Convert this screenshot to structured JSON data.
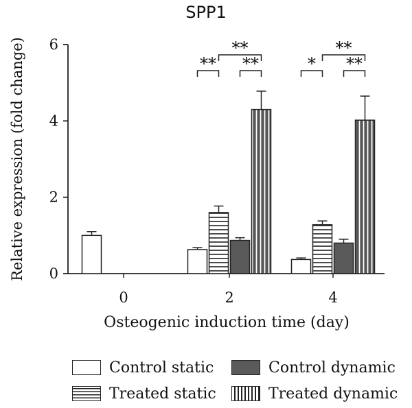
{
  "chart_data": {
    "type": "bar",
    "title": "SPP1",
    "xlabel": "Osteogenic induction time (day)",
    "ylabel": "Relative expression (fold change)",
    "categories": [
      "0",
      "2",
      "4"
    ],
    "ylim": [
      0,
      6
    ],
    "yticks": [
      0,
      2,
      4,
      6
    ],
    "grid": false,
    "legend_position": "bottom",
    "series": [
      {
        "name": "Control static",
        "values": [
          1.0,
          0.63,
          0.37
        ],
        "errors": [
          0.1,
          0.05,
          0.04
        ],
        "fill": "#ffffff",
        "pattern": "none"
      },
      {
        "name": "Treated static",
        "values": [
          null,
          1.6,
          1.28
        ],
        "errors": [
          null,
          0.17,
          0.1
        ],
        "fill": "#ffffff",
        "pattern": "horizontal-stripes"
      },
      {
        "name": "Control dynamic",
        "values": [
          null,
          0.87,
          0.8
        ],
        "errors": [
          null,
          0.07,
          0.1
        ],
        "fill": "#5a5a5a",
        "pattern": "none"
      },
      {
        "name": "Treated dynamic",
        "values": [
          null,
          4.3,
          4.02
        ],
        "errors": [
          null,
          0.48,
          0.63
        ],
        "fill": "#555555",
        "pattern": "vertical-stripes"
      }
    ],
    "annotations": [
      {
        "category": "2",
        "from": "Treated static",
        "to": "Treated dynamic",
        "text": "**",
        "level": 2
      },
      {
        "category": "2",
        "from": "Control static",
        "to": "Treated static",
        "text": "**",
        "level": 1
      },
      {
        "category": "2",
        "from": "Control dynamic",
        "to": "Treated dynamic",
        "text": "**",
        "level": 1
      },
      {
        "category": "4",
        "from": "Treated static",
        "to": "Treated dynamic",
        "text": "**",
        "level": 2
      },
      {
        "category": "4",
        "from": "Control static",
        "to": "Treated static",
        "text": "*",
        "level": 1
      },
      {
        "category": "4",
        "from": "Control dynamic",
        "to": "Treated dynamic",
        "text": "**",
        "level": 1
      }
    ]
  }
}
